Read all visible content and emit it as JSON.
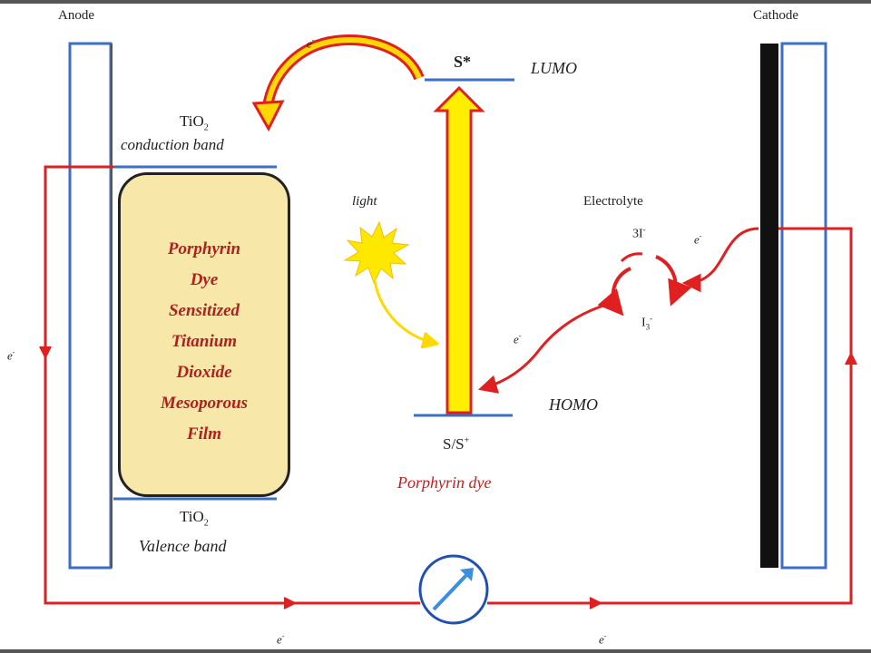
{
  "labels": {
    "anode": "Anode",
    "cathode": "Cathode",
    "tio2_cb": "TiO",
    "tio2_cb_sub": "2",
    "conduction_band": "conduction band",
    "tio2_vb": "TiO",
    "tio2_vb_sub": "2",
    "valence_band": "Valence band",
    "s_star": "S*",
    "lumo": "LUMO",
    "homo": "HOMO",
    "s_s_plus": "S/S",
    "s_s_plus_sup": "+",
    "porphyrin_dye": "Porphyrin dye",
    "light": "light",
    "electrolyte": "Electrolyte",
    "three_i": "3I",
    "three_i_sup": "-",
    "i3": "I",
    "i3_sub": "3",
    "i3_sup": "-",
    "electron": "e",
    "electron_sup": "-"
  },
  "film_lines": [
    "Porphyrin",
    "Dye",
    "Sensitized",
    "Titanium",
    "Dioxide",
    "Mesoporous",
    "Film"
  ],
  "colors": {
    "wire": "#e02020",
    "dye_bar": "#ffee00",
    "film_bg": "#f7e7a8",
    "electrode_blue": "#3a6fc4",
    "film_text": "#b02020",
    "sun": "#ffe800"
  }
}
